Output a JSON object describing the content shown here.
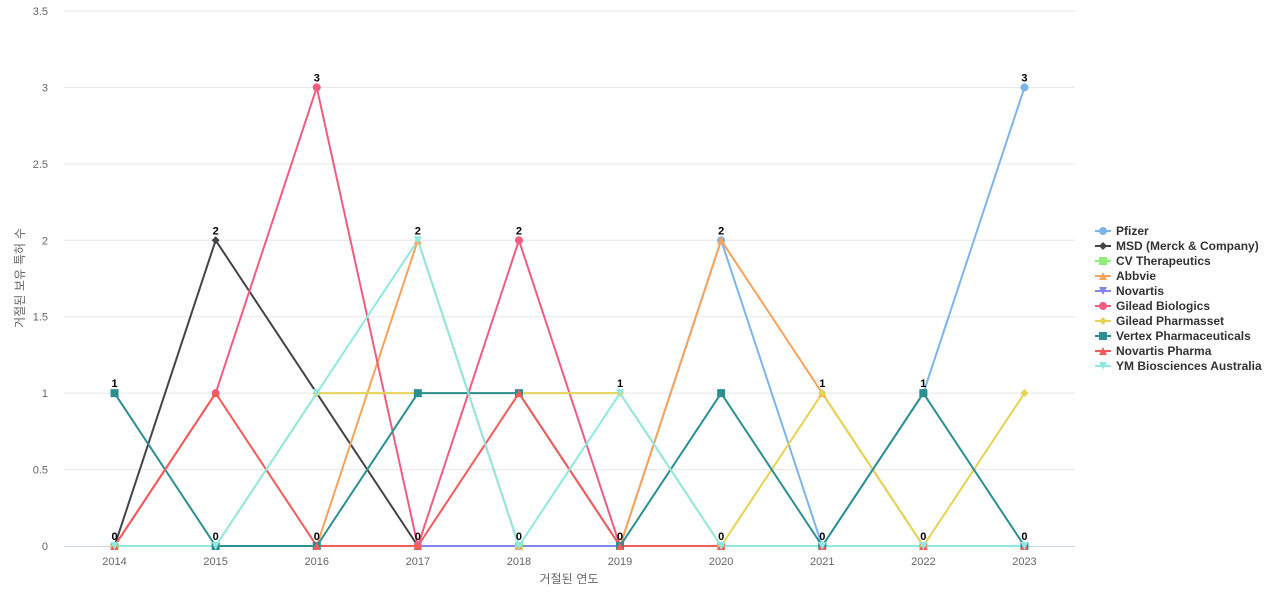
{
  "chart_data": {
    "type": "line",
    "title": "",
    "xlabel": "거절된 연도",
    "ylabel": "거절된 보유 특허 수",
    "x": [
      "2014",
      "2015",
      "2016",
      "2017",
      "2018",
      "2019",
      "2020",
      "2021",
      "2022",
      "2023"
    ],
    "ylim": [
      0,
      3.5
    ],
    "yticks": [
      "0",
      "0.5",
      "1",
      "1.5",
      "2",
      "2.5",
      "3",
      "3.5"
    ],
    "grid": true,
    "legend_position": "right",
    "series": [
      {
        "name": "Pfizer",
        "color": "#7cb5ec",
        "marker": "circle",
        "values": [
          0,
          0,
          0,
          0,
          0,
          0,
          2,
          0,
          1,
          3
        ]
      },
      {
        "name": "MSD (Merck & Company)",
        "color": "#434348",
        "marker": "diamond",
        "values": [
          0,
          2,
          1,
          0,
          0,
          0,
          0,
          0,
          0,
          0
        ]
      },
      {
        "name": "CV Therapeutics",
        "color": "#90ed7d",
        "marker": "square",
        "values": [
          0,
          0,
          0,
          0,
          0,
          0,
          0,
          0,
          0,
          0
        ]
      },
      {
        "name": "Abbvie",
        "color": "#f7a35c",
        "marker": "triangle",
        "values": [
          0,
          0,
          0,
          2,
          0,
          0,
          2,
          1,
          0,
          0
        ]
      },
      {
        "name": "Novartis",
        "color": "#8085e9",
        "marker": "triangle-down",
        "values": [
          0,
          0,
          0,
          0,
          0,
          0,
          0,
          0,
          0,
          0
        ]
      },
      {
        "name": "Gilead Biologics",
        "color": "#f15c80",
        "marker": "circle",
        "values": [
          0,
          1,
          3,
          0,
          2,
          0,
          0,
          0,
          0,
          0
        ]
      },
      {
        "name": "Gilead Pharmasset",
        "color": "#e4d354",
        "marker": "diamond",
        "values": [
          0,
          0,
          1,
          1,
          1,
          1,
          0,
          1,
          0,
          1
        ]
      },
      {
        "name": "Vertex Pharmaceuticals",
        "color": "#2b908f",
        "marker": "square",
        "values": [
          1,
          0,
          0,
          1,
          1,
          0,
          1,
          0,
          1,
          0
        ]
      },
      {
        "name": "Novartis Pharma",
        "color": "#f45b5b",
        "marker": "triangle",
        "values": [
          0,
          1,
          0,
          0,
          1,
          0,
          0,
          0,
          0,
          0
        ]
      },
      {
        "name": "YM Biosciences Australia",
        "color": "#91e8e1",
        "marker": "triangle-down",
        "values": [
          0,
          0,
          1,
          2,
          0,
          1,
          0,
          0,
          0,
          0
        ]
      }
    ],
    "data_labels": [
      "1",
      "2",
      "3",
      "2",
      "2",
      "1",
      "2",
      "1",
      "1",
      "3"
    ]
  }
}
